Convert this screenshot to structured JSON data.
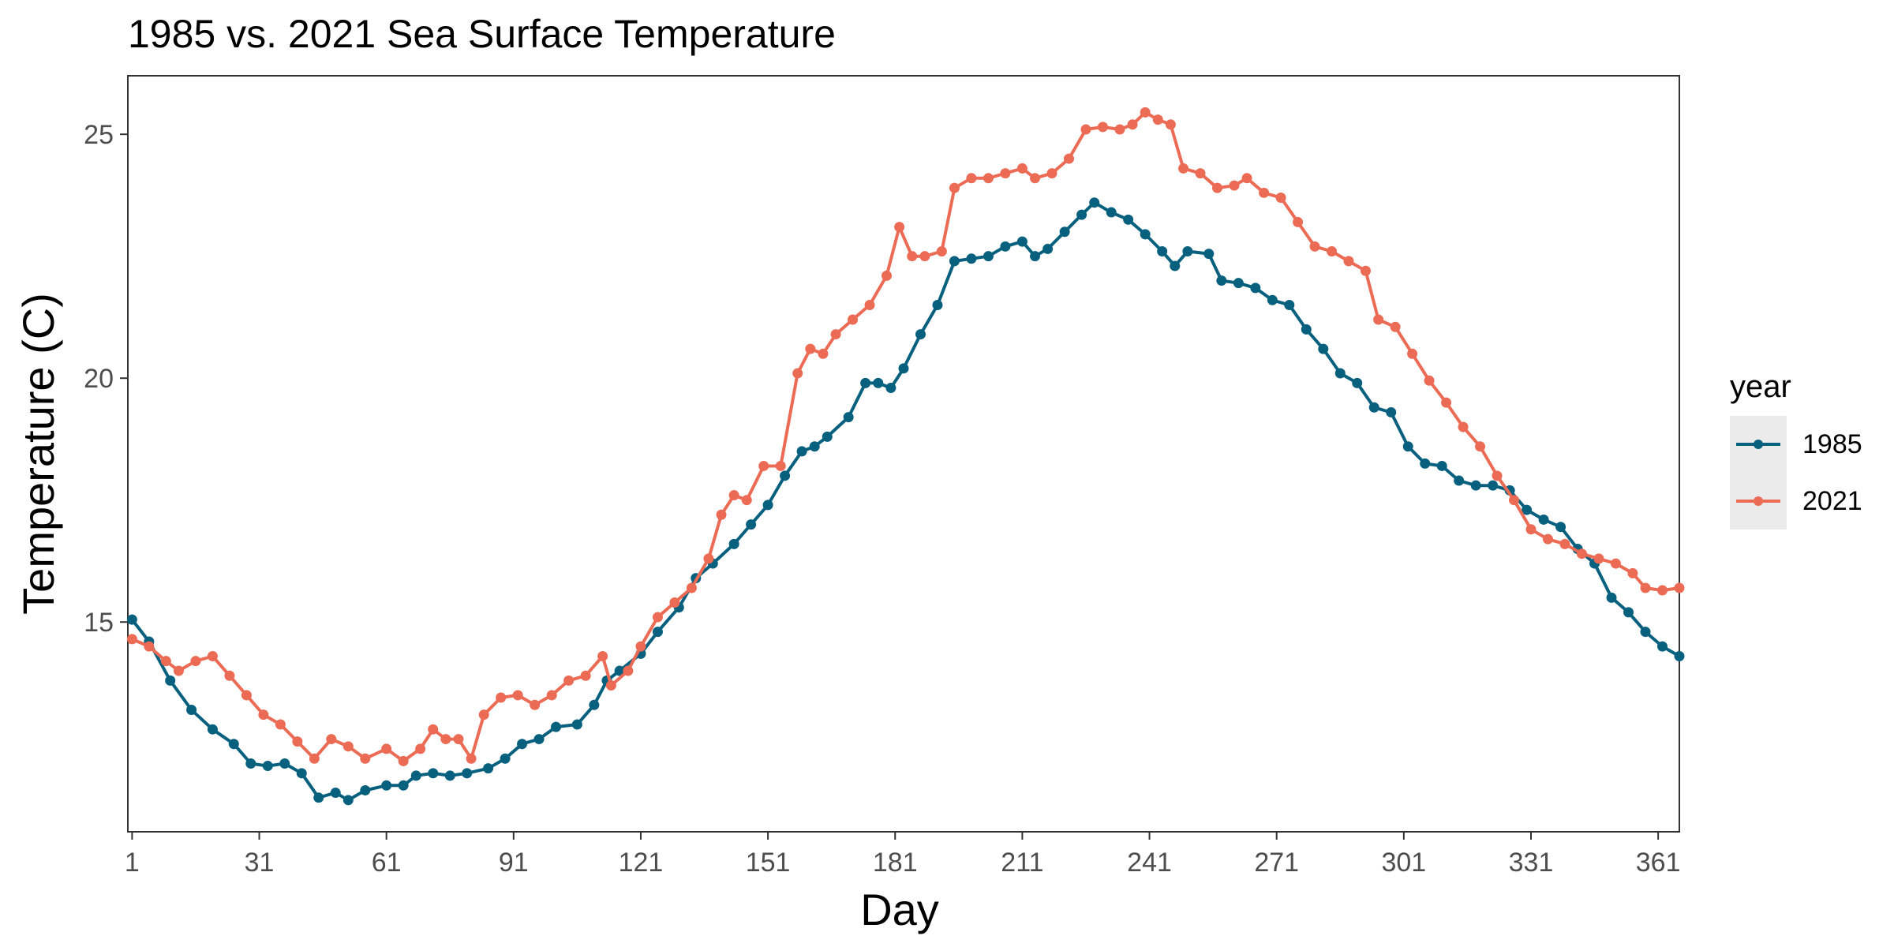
{
  "chart_data": {
    "type": "line",
    "title": "1985 vs. 2021 Sea Surface Temperature",
    "xlabel": "Day",
    "ylabel": "Temperature (C)",
    "xlim": [
      0,
      366
    ],
    "ylim": [
      10.7,
      26.2
    ],
    "x_ticks": [
      1,
      31,
      61,
      91,
      121,
      151,
      181,
      211,
      241,
      271,
      301,
      331,
      361
    ],
    "y_ticks": [
      15,
      20,
      25
    ],
    "grid": false,
    "legend": {
      "title": "year",
      "position": "right"
    },
    "series": [
      {
        "name": "1985",
        "color": "#08607f",
        "points": [
          [
            1,
            15.05
          ],
          [
            5,
            14.6
          ],
          [
            10,
            13.8
          ],
          [
            15,
            13.2
          ],
          [
            20,
            12.8
          ],
          [
            25,
            12.5
          ],
          [
            29,
            12.1
          ],
          [
            33,
            12.05
          ],
          [
            37,
            12.1
          ],
          [
            41,
            11.9
          ],
          [
            45,
            11.4
          ],
          [
            49,
            11.5
          ],
          [
            52,
            11.35
          ],
          [
            56,
            11.55
          ],
          [
            61,
            11.65
          ],
          [
            65,
            11.65
          ],
          [
            68,
            11.85
          ],
          [
            72,
            11.9
          ],
          [
            76,
            11.85
          ],
          [
            80,
            11.9
          ],
          [
            85,
            12.0
          ],
          [
            89,
            12.2
          ],
          [
            93,
            12.5
          ],
          [
            97,
            12.6
          ],
          [
            101,
            12.85
          ],
          [
            106,
            12.9
          ],
          [
            110,
            13.3
          ],
          [
            113,
            13.8
          ],
          [
            116,
            14.0
          ],
          [
            121,
            14.35
          ],
          [
            125,
            14.8
          ],
          [
            130,
            15.3
          ],
          [
            134,
            15.9
          ],
          [
            138,
            16.2
          ],
          [
            143,
            16.6
          ],
          [
            147,
            17.0
          ],
          [
            151,
            17.4
          ],
          [
            155,
            18.0
          ],
          [
            159,
            18.5
          ],
          [
            162,
            18.6
          ],
          [
            165,
            18.8
          ],
          [
            170,
            19.2
          ],
          [
            174,
            19.9
          ],
          [
            177,
            19.9
          ],
          [
            180,
            19.8
          ],
          [
            183,
            20.2
          ],
          [
            187,
            20.9
          ],
          [
            191,
            21.5
          ],
          [
            195,
            22.4
          ],
          [
            199,
            22.45
          ],
          [
            203,
            22.5
          ],
          [
            207,
            22.7
          ],
          [
            211,
            22.8
          ],
          [
            214,
            22.5
          ],
          [
            217,
            22.65
          ],
          [
            221,
            23.0
          ],
          [
            225,
            23.35
          ],
          [
            228,
            23.6
          ],
          [
            232,
            23.4
          ],
          [
            236,
            23.25
          ],
          [
            240,
            22.95
          ],
          [
            244,
            22.6
          ],
          [
            247,
            22.3
          ],
          [
            250,
            22.6
          ],
          [
            255,
            22.55
          ],
          [
            258,
            22.0
          ],
          [
            262,
            21.95
          ],
          [
            266,
            21.85
          ],
          [
            270,
            21.6
          ],
          [
            274,
            21.5
          ],
          [
            278,
            21.0
          ],
          [
            282,
            20.6
          ],
          [
            286,
            20.1
          ],
          [
            290,
            19.9
          ],
          [
            294,
            19.4
          ],
          [
            298,
            19.3
          ],
          [
            302,
            18.6
          ],
          [
            306,
            18.25
          ],
          [
            310,
            18.2
          ],
          [
            314,
            17.9
          ],
          [
            318,
            17.8
          ],
          [
            322,
            17.8
          ],
          [
            326,
            17.7
          ],
          [
            330,
            17.3
          ],
          [
            334,
            17.1
          ],
          [
            338,
            16.95
          ],
          [
            342,
            16.5
          ],
          [
            346,
            16.2
          ],
          [
            350,
            15.5
          ],
          [
            354,
            15.2
          ],
          [
            358,
            14.8
          ],
          [
            362,
            14.5
          ],
          [
            366,
            14.3
          ]
        ]
      },
      {
        "name": "2021",
        "color": "#ec6b55",
        "points": [
          [
            1,
            14.65
          ],
          [
            5,
            14.5
          ],
          [
            9,
            14.2
          ],
          [
            12,
            14.0
          ],
          [
            16,
            14.2
          ],
          [
            20,
            14.3
          ],
          [
            24,
            13.9
          ],
          [
            28,
            13.5
          ],
          [
            32,
            13.1
          ],
          [
            36,
            12.9
          ],
          [
            40,
            12.55
          ],
          [
            44,
            12.2
          ],
          [
            48,
            12.6
          ],
          [
            52,
            12.45
          ],
          [
            56,
            12.2
          ],
          [
            61,
            12.4
          ],
          [
            65,
            12.15
          ],
          [
            69,
            12.4
          ],
          [
            72,
            12.8
          ],
          [
            75,
            12.6
          ],
          [
            78,
            12.6
          ],
          [
            81,
            12.2
          ],
          [
            84,
            13.1
          ],
          [
            88,
            13.45
          ],
          [
            92,
            13.5
          ],
          [
            96,
            13.3
          ],
          [
            100,
            13.5
          ],
          [
            104,
            13.8
          ],
          [
            108,
            13.9
          ],
          [
            112,
            14.3
          ],
          [
            114,
            13.7
          ],
          [
            118,
            14.0
          ],
          [
            121,
            14.5
          ],
          [
            125,
            15.1
          ],
          [
            129,
            15.4
          ],
          [
            133,
            15.7
          ],
          [
            137,
            16.3
          ],
          [
            140,
            17.2
          ],
          [
            143,
            17.6
          ],
          [
            146,
            17.5
          ],
          [
            150,
            18.2
          ],
          [
            154,
            18.2
          ],
          [
            158,
            20.1
          ],
          [
            161,
            20.6
          ],
          [
            164,
            20.5
          ],
          [
            167,
            20.9
          ],
          [
            171,
            21.2
          ],
          [
            175,
            21.5
          ],
          [
            179,
            22.1
          ],
          [
            182,
            23.1
          ],
          [
            185,
            22.5
          ],
          [
            188,
            22.5
          ],
          [
            192,
            22.6
          ],
          [
            195,
            23.9
          ],
          [
            199,
            24.1
          ],
          [
            203,
            24.1
          ],
          [
            207,
            24.2
          ],
          [
            211,
            24.3
          ],
          [
            214,
            24.1
          ],
          [
            218,
            24.2
          ],
          [
            222,
            24.5
          ],
          [
            226,
            25.1
          ],
          [
            230,
            25.15
          ],
          [
            234,
            25.1
          ],
          [
            237,
            25.2
          ],
          [
            240,
            25.45
          ],
          [
            243,
            25.3
          ],
          [
            246,
            25.2
          ],
          [
            249,
            24.3
          ],
          [
            253,
            24.2
          ],
          [
            257,
            23.9
          ],
          [
            261,
            23.95
          ],
          [
            264,
            24.1
          ],
          [
            268,
            23.8
          ],
          [
            272,
            23.7
          ],
          [
            276,
            23.2
          ],
          [
            280,
            22.7
          ],
          [
            284,
            22.6
          ],
          [
            288,
            22.4
          ],
          [
            292,
            22.2
          ],
          [
            295,
            21.2
          ],
          [
            299,
            21.05
          ],
          [
            303,
            20.5
          ],
          [
            307,
            19.95
          ],
          [
            311,
            19.5
          ],
          [
            315,
            19.0
          ],
          [
            319,
            18.6
          ],
          [
            323,
            18.0
          ],
          [
            327,
            17.5
          ],
          [
            331,
            16.9
          ],
          [
            335,
            16.7
          ],
          [
            339,
            16.6
          ],
          [
            343,
            16.4
          ],
          [
            347,
            16.3
          ],
          [
            351,
            16.2
          ],
          [
            355,
            16.0
          ],
          [
            358,
            15.7
          ],
          [
            362,
            15.65
          ],
          [
            366,
            15.7
          ]
        ]
      }
    ]
  }
}
